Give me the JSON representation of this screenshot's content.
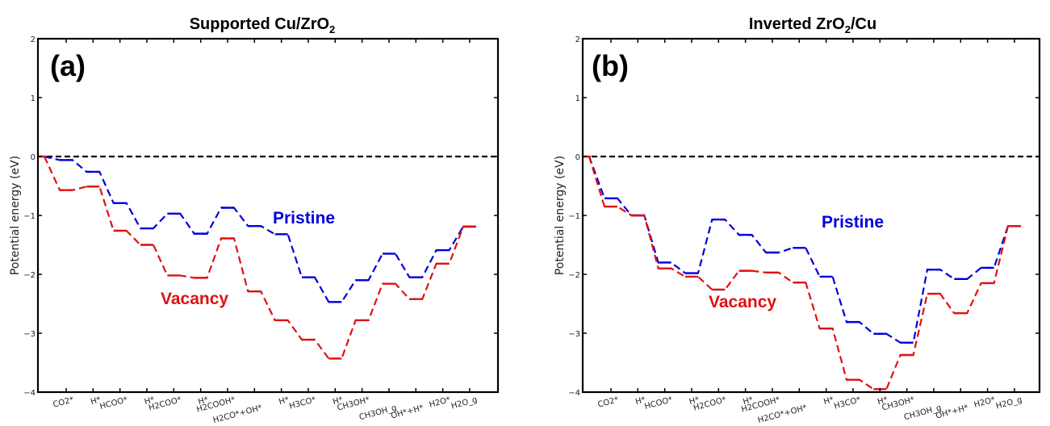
{
  "chart_data": [
    {
      "type": "line",
      "title_main": "Supported Cu/ZrO",
      "title_sub": "2",
      "title": "Supported Cu/ZrO2",
      "panel_label": "(a)",
      "xlabel": "",
      "ylabel": "Potential energy (eV)",
      "ylim": [
        -4,
        2
      ],
      "yticks": [
        "2",
        "1",
        "0",
        "−1",
        "−2",
        "−3",
        "−4"
      ],
      "ytick_values": [
        2,
        1,
        0,
        -1,
        -2,
        -3,
        -4
      ],
      "reference_line": 0,
      "categories": [
        "CO2*",
        "H*",
        "HCOO*",
        "H*",
        "H2COO*",
        "H*",
        "H2COOH*",
        "H2CO*+OH*",
        "H*",
        "H3CO*",
        "H*",
        "CH3OH*",
        "CH3OH_g",
        "OH*+H*",
        "H2O*",
        "H2O_g"
      ],
      "series": [
        {
          "name": "Pristine",
          "color": "#0000dd",
          "start": 0,
          "values": [
            -0.06,
            -0.26,
            -0.79,
            -1.22,
            -0.97,
            -1.31,
            -0.87,
            -1.18,
            -1.32,
            -2.05,
            -2.47,
            -2.1,
            -1.65,
            -2.05,
            -1.59,
            -1.19
          ]
        },
        {
          "name": "Vacancy",
          "color": "#e01010",
          "start": 0,
          "values": [
            -0.57,
            -0.51,
            -1.26,
            -1.5,
            -2.02,
            -2.06,
            -1.39,
            -2.29,
            -2.78,
            -3.11,
            -3.43,
            -2.78,
            -2.16,
            -2.42,
            -1.82,
            -1.19
          ]
        }
      ],
      "annotations": [
        "Pristine",
        "Vacancy"
      ]
    },
    {
      "type": "line",
      "title_main": "Inverted ZrO",
      "title_sub": "2",
      "title_tail": "/Cu",
      "title": "Inverted ZrO2/Cu",
      "panel_label": "(b)",
      "xlabel": "",
      "ylabel": "Potential energy (eV)",
      "ylim": [
        -4,
        2
      ],
      "yticks": [
        "2",
        "1",
        "0",
        "−1",
        "−2",
        "−3",
        "−4"
      ],
      "ytick_values": [
        2,
        1,
        0,
        -1,
        -2,
        -3,
        -4
      ],
      "reference_line": 0,
      "categories": [
        "CO2*",
        "H*",
        "HCOO*",
        "H*",
        "H2COO*",
        "H*",
        "H2COOH*",
        "H2CO*+OH*",
        "H*",
        "H3CO*",
        "H*",
        "CH3OH*",
        "CH3OH_g",
        "OH*+H*",
        "H2O*",
        "H2O_g"
      ],
      "series": [
        {
          "name": "Pristine",
          "color": "#0000dd",
          "start": 0,
          "values": [
            -0.71,
            -1.0,
            -1.8,
            -1.98,
            -1.07,
            -1.33,
            -1.63,
            -1.55,
            -2.04,
            -2.81,
            -3.01,
            -3.16,
            -1.92,
            -2.08,
            -1.89,
            -1.18
          ]
        },
        {
          "name": "Vacancy",
          "color": "#e01010",
          "start": 0,
          "values": [
            -0.85,
            -1.0,
            -1.9,
            -2.04,
            -2.26,
            -1.94,
            -1.97,
            -2.14,
            -2.92,
            -3.79,
            -3.95,
            -3.37,
            -2.33,
            -2.66,
            -2.15,
            -1.18
          ]
        }
      ],
      "annotations": [
        "Pristine",
        "Vacancy"
      ]
    }
  ]
}
